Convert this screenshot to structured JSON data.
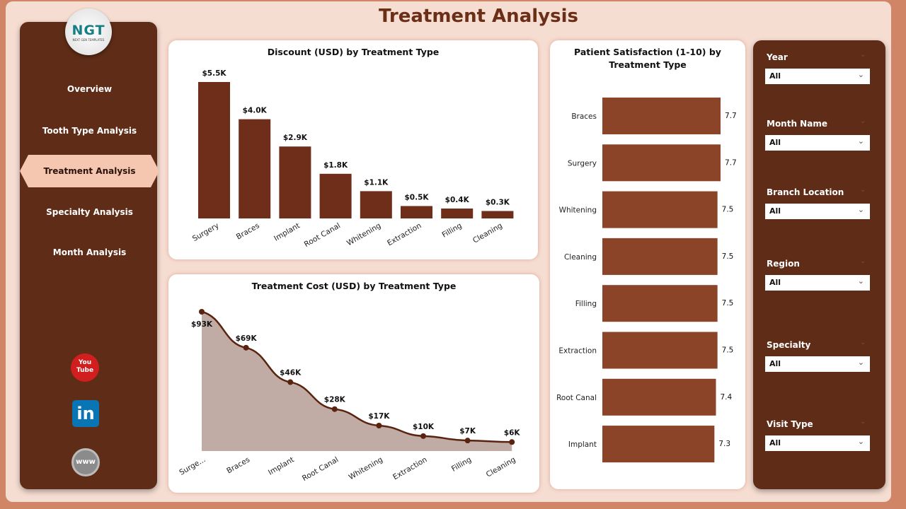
{
  "header": {
    "title": "Treatment Analysis"
  },
  "logo": {
    "text": "NGT",
    "subtext": "NEXT GEN TEMPLATES"
  },
  "nav": {
    "items": [
      {
        "label": "Overview"
      },
      {
        "label": "Tooth Type Analysis"
      },
      {
        "label": "Treatment Analysis",
        "selected": true
      },
      {
        "label": "Specialty Analysis"
      },
      {
        "label": "Month Analysis"
      }
    ]
  },
  "social": {
    "youtube": "You Tube",
    "linkedin": "in",
    "web": "www"
  },
  "filters": [
    {
      "label": "Year",
      "value": "All"
    },
    {
      "label": "Month Name",
      "value": "All"
    },
    {
      "label": "Branch Location",
      "value": "All"
    },
    {
      "label": "Region",
      "value": "All"
    },
    {
      "label": "Specialty",
      "value": "All"
    },
    {
      "label": "Visit Type",
      "value": "All"
    }
  ],
  "colors": {
    "bar": "#6e2e1a",
    "hbar": "#8b4428",
    "area": "#c0aca4",
    "line": "#5a2310"
  },
  "chart_data": [
    {
      "type": "bar",
      "title": "Discount (USD) by Treatment Type",
      "categories": [
        "Surgery",
        "Braces",
        "Implant",
        "Root Canal",
        "Whitening",
        "Extraction",
        "Filling",
        "Cleaning"
      ],
      "values": [
        5.5,
        4.0,
        2.9,
        1.8,
        1.1,
        0.5,
        0.4,
        0.3
      ],
      "labels": [
        "$5.5K",
        "$4.0K",
        "$2.9K",
        "$1.8K",
        "$1.1K",
        "$0.5K",
        "$0.4K",
        "$0.3K"
      ],
      "unit": "K USD",
      "grid": false
    },
    {
      "type": "area",
      "title": "Treatment Cost (USD) by Treatment Type",
      "categories": [
        "Surge...",
        "Braces",
        "Implant",
        "Root Canal",
        "Whitening",
        "Extraction",
        "Filling",
        "Cleaning"
      ],
      "values": [
        93,
        69,
        46,
        28,
        17,
        10,
        7,
        6
      ],
      "labels": [
        "$93K",
        "$69K",
        "$46K",
        "$28K",
        "$17K",
        "$10K",
        "$7K",
        "$6K"
      ],
      "unit": "K USD",
      "grid": false
    },
    {
      "type": "bar",
      "orientation": "horizontal",
      "title": "Patient Satisfaction (1-10) by Treatment Type",
      "categories": [
        "Braces",
        "Surgery",
        "Whitening",
        "Cleaning",
        "Filling",
        "Extraction",
        "Root Canal",
        "Implant"
      ],
      "values": [
        7.7,
        7.7,
        7.5,
        7.5,
        7.5,
        7.5,
        7.4,
        7.3
      ],
      "labels": [
        "7.7",
        "7.7",
        "7.5",
        "7.5",
        "7.5",
        "7.5",
        "7.4",
        "7.3"
      ],
      "grid": false
    }
  ]
}
